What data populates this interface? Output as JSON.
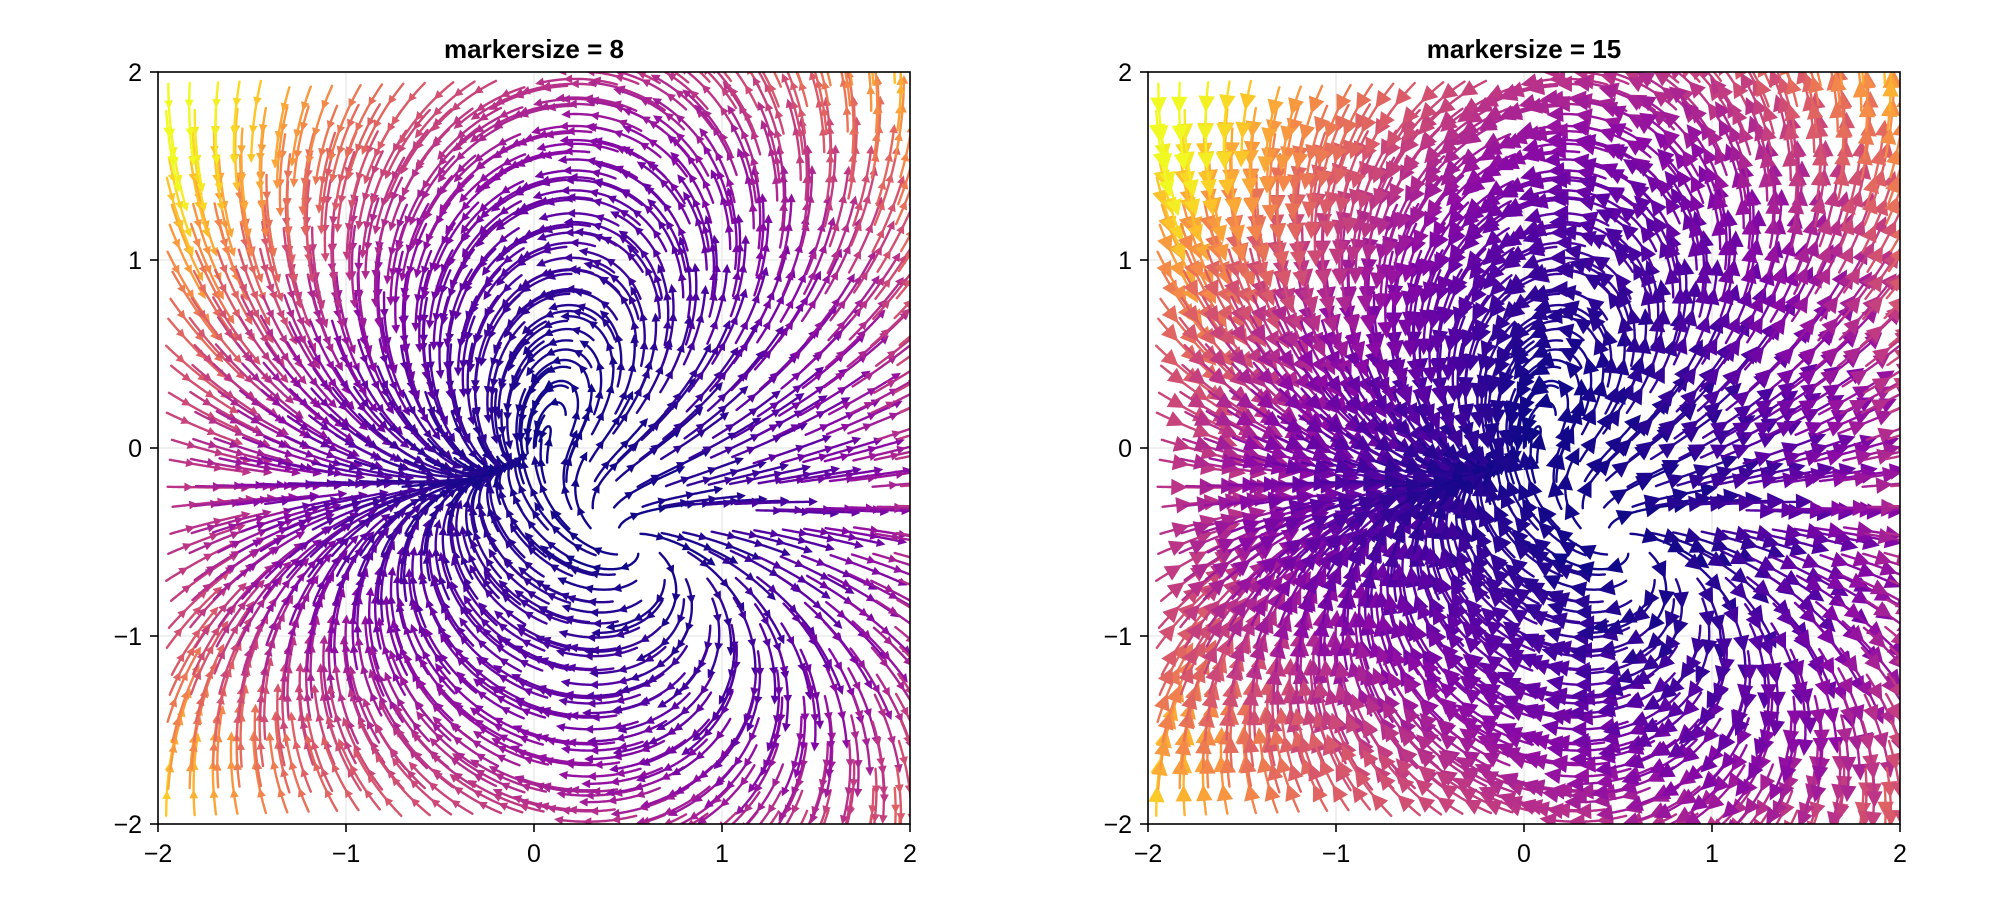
{
  "chart_data": [
    {
      "type": "streamplot",
      "title": "markersize = 8",
      "xlim": [
        -2,
        2
      ],
      "ylim": [
        -2,
        2
      ],
      "xticks": [
        -2,
        -1,
        0,
        1,
        2
      ],
      "yticks": [
        -2,
        -1,
        0,
        1,
        2
      ],
      "xtick_labels": [
        "−2",
        "−1",
        "0",
        "1",
        "2"
      ],
      "ytick_labels": [
        "−2",
        "−1",
        "0",
        "1",
        "2"
      ],
      "grid": true,
      "markersize": 8,
      "colormap": "plasma",
      "vector_field": {
        "u": "x^2 - y^2",
        "v": "2xy + 0.5x - 0.5y"
      }
    },
    {
      "type": "streamplot",
      "title": "markersize = 15",
      "xlim": [
        -2,
        2
      ],
      "ylim": [
        -2,
        2
      ],
      "xticks": [
        -2,
        -1,
        0,
        1,
        2
      ],
      "yticks": [
        -2,
        -1,
        0,
        1,
        2
      ],
      "xtick_labels": [
        "−2",
        "−1",
        "0",
        "1",
        "2"
      ],
      "ytick_labels": [
        "−2",
        "−1",
        "0",
        "1",
        "2"
      ],
      "grid": true,
      "markersize": 15,
      "colormap": "plasma",
      "vector_field": {
        "u": "x^2 - y^2",
        "v": "2xy + 0.5x - 0.5y"
      }
    }
  ]
}
